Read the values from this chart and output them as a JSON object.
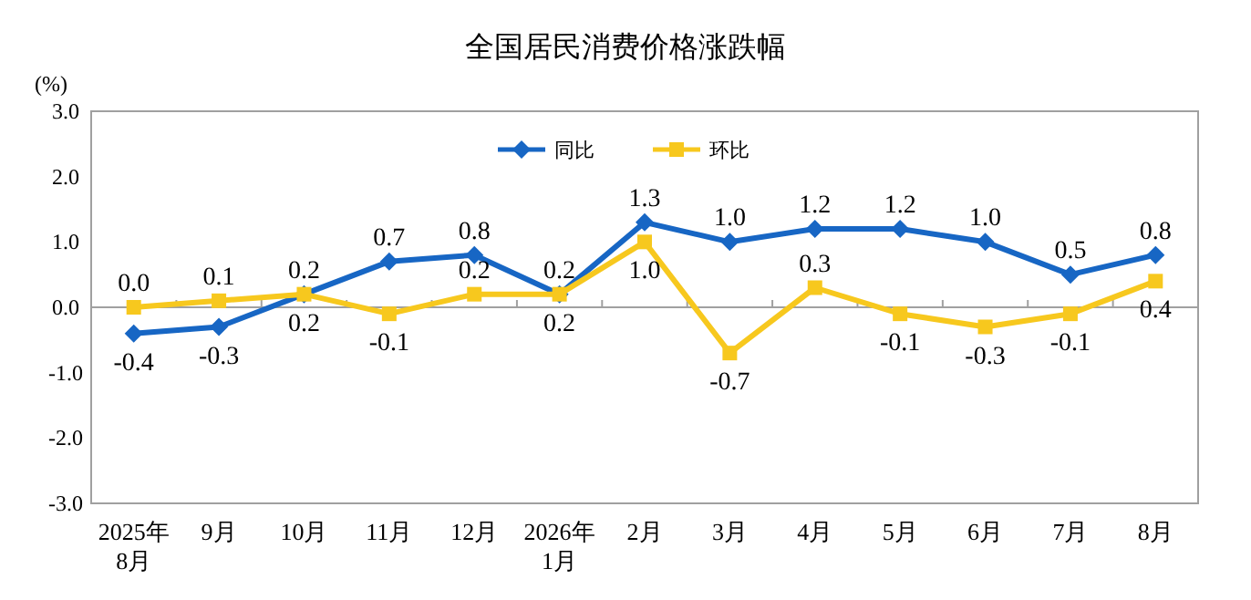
{
  "chart_data": {
    "type": "line",
    "title": "全国居民消费价格涨跌幅",
    "ylabel": "(%)",
    "categories": [
      "2025年\n8月",
      "9月",
      "10月",
      "11月",
      "12月",
      "2026年\n1月",
      "2月",
      "3月",
      "4月",
      "5月",
      "6月",
      "7月",
      "8月"
    ],
    "series": [
      {
        "name": "同比",
        "color": "#1766c4",
        "marker": "diamond",
        "values": [
          -0.4,
          -0.3,
          0.2,
          0.7,
          0.8,
          0.2,
          1.3,
          1.0,
          1.2,
          1.2,
          1.0,
          0.5,
          0.8
        ],
        "value_labels": [
          "-0.4",
          "-0.3",
          "0.2",
          "0.7",
          "0.8",
          "0.2",
          "1.3",
          "1.0",
          "1.2",
          "1.2",
          "1.0",
          "0.5",
          "0.8"
        ]
      },
      {
        "name": "环比",
        "color": "#f7c81e",
        "marker": "square",
        "values": [
          0.0,
          0.1,
          0.2,
          -0.1,
          0.2,
          0.2,
          1.0,
          -0.7,
          0.3,
          -0.1,
          -0.3,
          -0.1,
          0.4
        ],
        "value_labels": [
          "0.0",
          "0.1",
          "0.2",
          "-0.1",
          "0.2",
          "0.2",
          "1.0",
          "-0.7",
          "0.3",
          "-0.1",
          "-0.3",
          "-0.1",
          "0.4"
        ]
      }
    ],
    "ylim": [
      -3,
      3
    ],
    "yticks": [
      {
        "value": -3,
        "label": "-3.0"
      },
      {
        "value": -2,
        "label": "-2.0"
      },
      {
        "value": -1,
        "label": "-1.0"
      },
      {
        "value": 0,
        "label": "0.0"
      },
      {
        "value": 1,
        "label": "1.0"
      },
      {
        "value": 2,
        "label": "2.0"
      },
      {
        "value": 3,
        "label": "3.0"
      }
    ],
    "legend": "top",
    "line_style": "solid"
  }
}
